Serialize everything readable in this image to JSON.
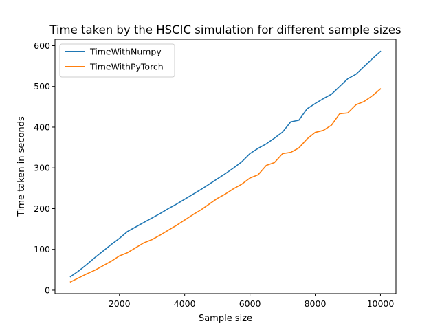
{
  "chart_data": {
    "type": "line",
    "title": "Time taken by the HSCIC simulation for different sample sizes",
    "xlabel": "Sample size",
    "ylabel": "Time taken in seconds",
    "xlim": [
      25,
      10475
    ],
    "ylim": [
      -8.5,
      616
    ],
    "xticks": [
      2000,
      4000,
      6000,
      8000,
      10000
    ],
    "yticks": [
      0,
      100,
      200,
      300,
      400,
      500,
      600
    ],
    "grid": false,
    "legend_position": "top-left",
    "x": [
      500,
      750,
      1000,
      1250,
      1500,
      1750,
      2000,
      2250,
      2500,
      2750,
      3000,
      3250,
      3500,
      3750,
      4000,
      4250,
      4500,
      4750,
      5000,
      5250,
      5500,
      5750,
      6000,
      6250,
      6500,
      6750,
      7000,
      7250,
      7500,
      7750,
      8000,
      8250,
      8500,
      8750,
      9000,
      9250,
      9500,
      9750,
      10000
    ],
    "series": [
      {
        "name": "TimeWithNumpy",
        "color": "#1f77b4",
        "values": [
          33,
          47,
          63,
          80,
          96,
          112,
          127,
          144,
          155,
          166,
          177,
          188,
          200,
          211,
          223,
          235,
          247,
          260,
          273,
          286,
          300,
          315,
          335,
          348,
          359,
          373,
          388,
          413,
          417,
          445,
          458,
          470,
          481,
          500,
          519,
          530,
          549,
          568,
          586
        ]
      },
      {
        "name": "TimeWithPyTorch",
        "color": "#ff7f0e",
        "values": [
          20,
          30,
          40,
          49,
          60,
          71,
          84,
          92,
          104,
          116,
          124,
          135,
          147,
          159,
          172,
          185,
          197,
          211,
          225,
          236,
          249,
          260,
          275,
          283,
          306,
          313,
          335,
          338,
          349,
          371,
          387,
          392,
          405,
          433,
          435,
          455,
          463,
          477,
          494
        ]
      }
    ]
  }
}
